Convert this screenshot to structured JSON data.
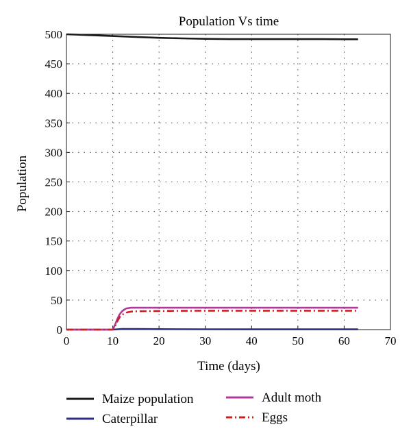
{
  "chart_data": {
    "type": "line",
    "title": "Population Vs time",
    "xlabel": "Time (days)",
    "ylabel": "Population",
    "xlim": [
      0,
      70
    ],
    "ylim": [
      0,
      500
    ],
    "xticks": [
      0,
      10,
      20,
      30,
      40,
      50,
      60,
      70
    ],
    "yticks": [
      0,
      50,
      100,
      150,
      200,
      250,
      300,
      350,
      400,
      450,
      500
    ],
    "grid": true,
    "legend": "bottom",
    "series": [
      {
        "name": "Maize population",
        "color": "#1a1a1a",
        "style": "solid",
        "x": [
          0,
          5,
          10,
          15,
          20,
          25,
          30,
          35,
          40,
          45,
          50,
          55,
          60,
          63
        ],
        "y": [
          500,
          498.5,
          497,
          495.5,
          494,
          493,
          492.2,
          491.8,
          491.8,
          491.8,
          491.8,
          491.8,
          491.5,
          491.5
        ]
      },
      {
        "name": "Caterpillar",
        "color": "#2e2a85",
        "style": "solid",
        "x": [
          0,
          10,
          12,
          15,
          20,
          30,
          40,
          50,
          60,
          63
        ],
        "y": [
          0,
          0,
          1,
          1,
          0.8,
          0.6,
          0.5,
          0.5,
          0.5,
          0.5
        ]
      },
      {
        "name": "Adult moth",
        "color": "#b03a9a",
        "style": "solid",
        "x": [
          0,
          10,
          10.5,
          11,
          11.5,
          12,
          12.5,
          13,
          14,
          15,
          20,
          30,
          40,
          50,
          60,
          63
        ],
        "y": [
          0,
          0,
          8,
          18,
          26,
          31,
          34,
          36,
          37,
          37,
          37,
          37,
          37,
          37,
          37,
          37
        ]
      },
      {
        "name": "Eggs",
        "color": "#cc1f1f",
        "style": "dashdot",
        "x": [
          0,
          10,
          10.5,
          11,
          11.5,
          12,
          13,
          14,
          15,
          20,
          30,
          40,
          50,
          60,
          63
        ],
        "y": [
          0,
          0,
          6,
          14,
          21,
          25,
          29,
          30.5,
          31,
          31.5,
          32,
          32,
          32,
          32,
          32
        ]
      }
    ]
  }
}
